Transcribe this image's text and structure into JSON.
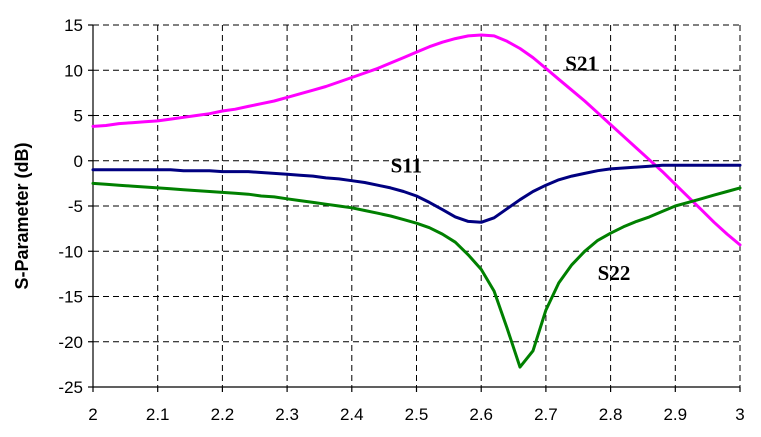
{
  "chart_data": {
    "type": "line",
    "title": "",
    "xlabel": "",
    "ylabel": "S-Parameter (dB)",
    "xlim": [
      2,
      3
    ],
    "ylim": [
      -25,
      15
    ],
    "xticks": [
      2,
      2.1,
      2.2,
      2.3,
      2.4,
      2.5,
      2.6,
      2.7,
      2.8,
      2.9,
      3
    ],
    "xtick_labels": [
      "2",
      "2.1",
      "2.2",
      "2.3",
      "2.4",
      "2.5",
      "2.6",
      "2.7",
      "2.8",
      "2.9",
      "3"
    ],
    "yticks": [
      -25,
      -20,
      -15,
      -10,
      -5,
      0,
      5,
      10,
      15
    ],
    "ytick_labels": [
      "-25",
      "-20",
      "-15",
      "-10",
      "-5",
      "0",
      "5",
      "10",
      "15"
    ],
    "grid": true,
    "legend": "none",
    "x": [
      2.0,
      2.02,
      2.04,
      2.06,
      2.08,
      2.1,
      2.12,
      2.14,
      2.16,
      2.18,
      2.2,
      2.22,
      2.24,
      2.26,
      2.28,
      2.3,
      2.32,
      2.34,
      2.36,
      2.38,
      2.4,
      2.42,
      2.44,
      2.46,
      2.48,
      2.5,
      2.52,
      2.54,
      2.56,
      2.58,
      2.6,
      2.62,
      2.64,
      2.66,
      2.68,
      2.7,
      2.72,
      2.74,
      2.76,
      2.78,
      2.8,
      2.82,
      2.84,
      2.86,
      2.88,
      2.9,
      2.92,
      2.94,
      2.96,
      2.98,
      3.0
    ],
    "series": [
      {
        "name": "S21",
        "label": "S21",
        "color": "#ff00ff",
        "values": [
          3.8,
          3.9,
          4.1,
          4.2,
          4.3,
          4.4,
          4.6,
          4.8,
          5.0,
          5.2,
          5.5,
          5.7,
          6.0,
          6.3,
          6.6,
          7.0,
          7.4,
          7.8,
          8.2,
          8.7,
          9.2,
          9.7,
          10.2,
          10.8,
          11.4,
          12.0,
          12.6,
          13.1,
          13.5,
          13.8,
          13.9,
          13.8,
          13.2,
          12.4,
          11.4,
          10.2,
          9.0,
          7.8,
          6.6,
          5.3,
          4.0,
          2.7,
          1.4,
          0.1,
          -1.2,
          -2.6,
          -4.0,
          -5.4,
          -6.8,
          -8.1,
          -9.3
        ]
      },
      {
        "name": "S11",
        "label": "S11",
        "color": "#000080",
        "values": [
          -1.0,
          -1.0,
          -1.0,
          -1.0,
          -1.0,
          -1.0,
          -1.0,
          -1.1,
          -1.1,
          -1.1,
          -1.2,
          -1.2,
          -1.2,
          -1.3,
          -1.4,
          -1.5,
          -1.6,
          -1.7,
          -1.9,
          -2.0,
          -2.2,
          -2.4,
          -2.7,
          -3.0,
          -3.4,
          -3.9,
          -4.6,
          -5.4,
          -6.2,
          -6.7,
          -6.8,
          -6.3,
          -5.3,
          -4.3,
          -3.4,
          -2.7,
          -2.1,
          -1.7,
          -1.4,
          -1.1,
          -0.9,
          -0.8,
          -0.7,
          -0.6,
          -0.5,
          -0.5,
          -0.5,
          -0.5,
          -0.5,
          -0.5,
          -0.5
        ]
      },
      {
        "name": "S22",
        "label": "S22",
        "color": "#008000",
        "values": [
          -2.5,
          -2.6,
          -2.7,
          -2.8,
          -2.9,
          -3.0,
          -3.1,
          -3.2,
          -3.3,
          -3.4,
          -3.5,
          -3.6,
          -3.7,
          -3.9,
          -4.0,
          -4.2,
          -4.4,
          -4.6,
          -4.8,
          -5.0,
          -5.2,
          -5.5,
          -5.8,
          -6.1,
          -6.5,
          -6.9,
          -7.4,
          -8.1,
          -9.0,
          -10.4,
          -12.0,
          -14.4,
          -18.5,
          -22.8,
          -21.0,
          -16.5,
          -13.5,
          -11.5,
          -10.0,
          -8.8,
          -8.0,
          -7.3,
          -6.7,
          -6.2,
          -5.6,
          -5.0,
          -4.6,
          -4.2,
          -3.8,
          -3.4,
          -3.0
        ]
      }
    ],
    "annotations": [
      {
        "text": "S21",
        "series": "S21",
        "x": 2.73,
        "y": 10.0
      },
      {
        "text": "S11",
        "series": "S11",
        "x": 2.46,
        "y": -1.3
      },
      {
        "text": "S22",
        "series": "S22",
        "x": 2.78,
        "y": -13.2
      }
    ]
  }
}
